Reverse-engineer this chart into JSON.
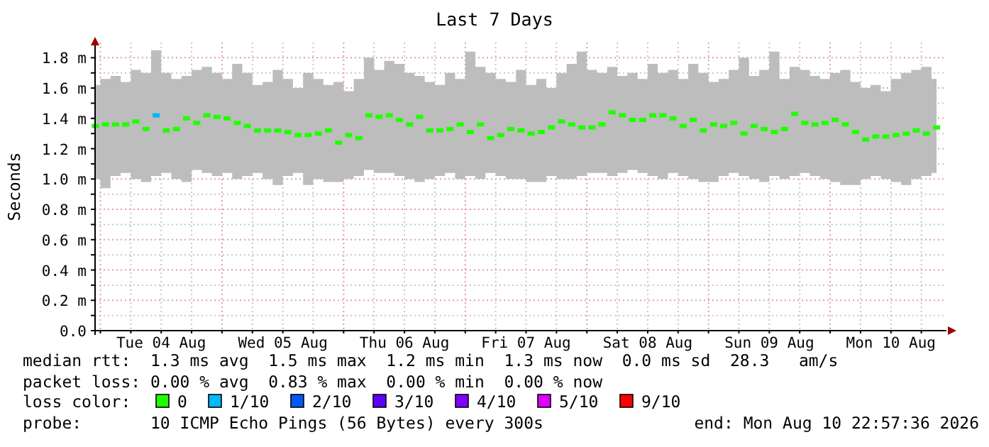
{
  "chart_data": {
    "type": "scatter",
    "title": "Last 7 Days",
    "ylabel": "Seconds",
    "legend_title": "loss color:",
    "legend": "bottom",
    "grid": true,
    "marker": "square",
    "xlim": [
      "2026-08-03T22:57",
      "2026-08-10T22:57"
    ],
    "xticks": [
      {
        "value": "2026-08-04T00:00",
        "label": null
      },
      {
        "value": "2026-08-04T06:00",
        "label": null
      },
      {
        "value": "2026-08-04T12:00",
        "label": "Tue 04 Aug"
      },
      {
        "value": "2026-08-04T18:00",
        "label": null
      },
      {
        "value": "2026-08-05T00:00",
        "label": null
      },
      {
        "value": "2026-08-05T06:00",
        "label": null
      },
      {
        "value": "2026-08-05T12:00",
        "label": "Wed 05 Aug"
      },
      {
        "value": "2026-08-05T18:00",
        "label": null
      },
      {
        "value": "2026-08-06T00:00",
        "label": null
      },
      {
        "value": "2026-08-06T06:00",
        "label": null
      },
      {
        "value": "2026-08-06T12:00",
        "label": "Thu 06 Aug"
      },
      {
        "value": "2026-08-06T18:00",
        "label": null
      },
      {
        "value": "2026-08-07T00:00",
        "label": null
      },
      {
        "value": "2026-08-07T06:00",
        "label": null
      },
      {
        "value": "2026-08-07T12:00",
        "label": "Fri 07 Aug"
      },
      {
        "value": "2026-08-07T18:00",
        "label": null
      },
      {
        "value": "2026-08-08T00:00",
        "label": null
      },
      {
        "value": "2026-08-08T06:00",
        "label": null
      },
      {
        "value": "2026-08-08T12:00",
        "label": "Sat 08 Aug"
      },
      {
        "value": "2026-08-08T18:00",
        "label": null
      },
      {
        "value": "2026-08-09T00:00",
        "label": null
      },
      {
        "value": "2026-08-09T06:00",
        "label": null
      },
      {
        "value": "2026-08-09T12:00",
        "label": "Sun 09 Aug"
      },
      {
        "value": "2026-08-09T18:00",
        "label": null
      },
      {
        "value": "2026-08-10T00:00",
        "label": null
      },
      {
        "value": "2026-08-10T06:00",
        "label": null
      },
      {
        "value": "2026-08-10T12:00",
        "label": "Mon 10 Aug"
      },
      {
        "value": "2026-08-10T18:00",
        "label": null
      }
    ],
    "ylim": [
      0,
      1.9
    ],
    "yticks": [
      {
        "value": 0,
        "label": "0.0"
      },
      {
        "value": 0.1,
        "label": null
      },
      {
        "value": 0.2,
        "label": "0.2 m"
      },
      {
        "value": 0.3,
        "label": null
      },
      {
        "value": 0.4,
        "label": "0.4 m"
      },
      {
        "value": 0.5,
        "label": null
      },
      {
        "value": 0.6,
        "label": "0.6 m"
      },
      {
        "value": 0.7,
        "label": null
      },
      {
        "value": 0.8,
        "label": "0.8 m"
      },
      {
        "value": 0.9,
        "label": null
      },
      {
        "value": 1.0,
        "label": "1.0 m"
      },
      {
        "value": 1.1,
        "label": null
      },
      {
        "value": 1.2,
        "label": "1.2 m"
      },
      {
        "value": 1.3,
        "label": null
      },
      {
        "value": 1.4,
        "label": "1.4 m"
      },
      {
        "value": 1.5,
        "label": null
      },
      {
        "value": 1.6,
        "label": "1.6 m"
      },
      {
        "value": 1.7,
        "label": null
      },
      {
        "value": 1.8,
        "label": "1.8 m"
      }
    ],
    "x": [
      "2026-08-03T23:00",
      "2026-08-04T01:00",
      "2026-08-04T03:00",
      "2026-08-04T05:00",
      "2026-08-04T07:00",
      "2026-08-04T09:00",
      "2026-08-04T11:00",
      "2026-08-04T13:00",
      "2026-08-04T15:00",
      "2026-08-04T17:00",
      "2026-08-04T19:00",
      "2026-08-04T21:00",
      "2026-08-04T23:00",
      "2026-08-05T01:00",
      "2026-08-05T03:00",
      "2026-08-05T05:00",
      "2026-08-05T07:00",
      "2026-08-05T09:00",
      "2026-08-05T11:00",
      "2026-08-05T13:00",
      "2026-08-05T15:00",
      "2026-08-05T17:00",
      "2026-08-05T19:00",
      "2026-08-05T21:00",
      "2026-08-05T23:00",
      "2026-08-06T01:00",
      "2026-08-06T03:00",
      "2026-08-06T05:00",
      "2026-08-06T07:00",
      "2026-08-06T09:00",
      "2026-08-06T11:00",
      "2026-08-06T13:00",
      "2026-08-06T15:00",
      "2026-08-06T17:00",
      "2026-08-06T19:00",
      "2026-08-06T21:00",
      "2026-08-06T23:00",
      "2026-08-07T01:00",
      "2026-08-07T03:00",
      "2026-08-07T05:00",
      "2026-08-07T07:00",
      "2026-08-07T09:00",
      "2026-08-07T11:00",
      "2026-08-07T13:00",
      "2026-08-07T15:00",
      "2026-08-07T17:00",
      "2026-08-07T19:00",
      "2026-08-07T21:00",
      "2026-08-07T23:00",
      "2026-08-08T01:00",
      "2026-08-08T03:00",
      "2026-08-08T05:00",
      "2026-08-08T07:00",
      "2026-08-08T09:00",
      "2026-08-08T11:00",
      "2026-08-08T13:00",
      "2026-08-08T15:00",
      "2026-08-08T17:00",
      "2026-08-08T19:00",
      "2026-08-08T21:00",
      "2026-08-08T23:00",
      "2026-08-09T01:00",
      "2026-08-09T03:00",
      "2026-08-09T05:00",
      "2026-08-09T07:00",
      "2026-08-09T09:00",
      "2026-08-09T11:00",
      "2026-08-09T13:00",
      "2026-08-09T15:00",
      "2026-08-09T17:00",
      "2026-08-09T19:00",
      "2026-08-09T21:00",
      "2026-08-09T23:00",
      "2026-08-10T01:00",
      "2026-08-10T03:00",
      "2026-08-10T05:00",
      "2026-08-10T07:00",
      "2026-08-10T09:00",
      "2026-08-10T11:00",
      "2026-08-10T13:00",
      "2026-08-10T15:00",
      "2026-08-10T17:00",
      "2026-08-10T19:00",
      "2026-08-10T21:00"
    ],
    "series": [
      {
        "name": "0",
        "color": "#20ff00",
        "values": [
          1.35,
          1.36,
          1.36,
          1.36,
          1.38,
          1.33,
          null,
          1.32,
          1.33,
          1.4,
          1.37,
          1.42,
          1.41,
          1.4,
          1.37,
          1.35,
          1.32,
          1.32,
          1.32,
          1.31,
          1.29,
          1.29,
          1.3,
          1.32,
          1.24,
          1.29,
          1.27,
          1.42,
          1.41,
          1.42,
          1.39,
          1.36,
          1.41,
          1.32,
          1.32,
          1.33,
          1.36,
          1.31,
          1.36,
          1.27,
          1.29,
          1.33,
          1.32,
          1.3,
          1.31,
          1.34,
          1.38,
          1.36,
          1.34,
          1.34,
          1.36,
          1.44,
          1.42,
          1.39,
          1.39,
          1.42,
          1.42,
          1.4,
          1.35,
          1.39,
          1.32,
          1.36,
          1.35,
          1.37,
          1.3,
          1.35,
          1.33,
          1.31,
          1.33,
          1.43,
          1.37,
          1.36,
          1.37,
          1.39,
          1.36,
          1.31,
          1.26,
          1.28,
          1.28,
          1.29,
          1.3,
          1.32,
          1.3,
          1.34
        ],
        "upper": [
          1.62,
          1.66,
          1.68,
          1.64,
          1.72,
          1.7,
          1.85,
          1.7,
          1.66,
          1.68,
          1.72,
          1.74,
          1.7,
          1.66,
          1.76,
          1.7,
          1.62,
          1.64,
          1.72,
          1.66,
          1.6,
          1.7,
          1.66,
          1.62,
          1.64,
          1.58,
          1.66,
          1.8,
          1.72,
          1.78,
          1.76,
          1.7,
          1.68,
          1.64,
          1.62,
          1.7,
          1.66,
          1.84,
          1.74,
          1.7,
          1.66,
          1.64,
          1.72,
          1.62,
          1.66,
          1.6,
          1.7,
          1.76,
          1.84,
          1.72,
          1.7,
          1.74,
          1.68,
          1.7,
          1.66,
          1.76,
          1.7,
          1.72,
          1.66,
          1.76,
          1.7,
          1.64,
          1.66,
          1.72,
          1.8,
          1.68,
          1.72,
          1.84,
          1.66,
          1.74,
          1.72,
          1.68,
          1.66,
          1.7,
          1.72,
          1.64,
          1.6,
          1.62,
          1.58,
          1.66,
          1.7,
          1.72,
          1.74,
          1.66
        ],
        "lower": [
          1.0,
          0.94,
          1.02,
          1.04,
          1.0,
          0.98,
          1.02,
          1.04,
          1.0,
          0.98,
          1.06,
          1.04,
          1.02,
          1.04,
          1.0,
          1.02,
          1.04,
          1.0,
          0.96,
          1.02,
          1.04,
          0.96,
          1.0,
          0.98,
          0.98,
          1.0,
          1.02,
          1.06,
          1.04,
          1.04,
          1.02,
          1.0,
          0.98,
          1.0,
          1.02,
          1.04,
          1.0,
          1.02,
          1.0,
          1.04,
          1.02,
          1.0,
          1.0,
          0.98,
          0.98,
          1.02,
          1.0,
          1.0,
          1.02,
          1.04,
          1.04,
          1.02,
          1.04,
          1.06,
          1.04,
          1.02,
          1.0,
          1.04,
          1.02,
          1.0,
          0.98,
          0.98,
          1.02,
          1.04,
          1.02,
          1.0,
          0.98,
          1.02,
          1.0,
          1.02,
          1.04,
          1.02,
          1.0,
          0.98,
          0.96,
          0.96,
          1.0,
          1.02,
          1.0,
          0.98,
          0.96,
          1.0,
          1.02,
          1.04
        ]
      },
      {
        "name": "1/10",
        "color": "#00b8ff",
        "x": [
          "2026-08-04T11:00"
        ],
        "values": [
          1.42
        ]
      },
      {
        "name": "2/10",
        "color": "#0059ff",
        "values": [
          null,
          null,
          null,
          null,
          null,
          null,
          null,
          null,
          null,
          null,
          null,
          null,
          null,
          null,
          null,
          null,
          null,
          null,
          null,
          null,
          null,
          null,
          null,
          null,
          null,
          null,
          null,
          null,
          null,
          null,
          null,
          null,
          null,
          null,
          null,
          null,
          null,
          null,
          null,
          null,
          null,
          null,
          null,
          null,
          null,
          null,
          null,
          null,
          null,
          null,
          null,
          null,
          null,
          null,
          null,
          null,
          null,
          null,
          null,
          null,
          null,
          null,
          null,
          null,
          null,
          null,
          null,
          null,
          null,
          null,
          null,
          null,
          null,
          null,
          null,
          null,
          null,
          null,
          null,
          null,
          null,
          null,
          null,
          null
        ]
      },
      {
        "name": "3/10",
        "color": "#5e00ff",
        "values": [
          null,
          null,
          null,
          null,
          null,
          null,
          null,
          null,
          null,
          null,
          null,
          null,
          null,
          null,
          null,
          null,
          null,
          null,
          null,
          null,
          null,
          null,
          null,
          null,
          null,
          null,
          null,
          null,
          null,
          null,
          null,
          null,
          null,
          null,
          null,
          null,
          null,
          null,
          null,
          null,
          null,
          null,
          null,
          null,
          null,
          null,
          null,
          null,
          null,
          null,
          null,
          null,
          null,
          null,
          null,
          null,
          null,
          null,
          null,
          null,
          null,
          null,
          null,
          null,
          null,
          null,
          null,
          null,
          null,
          null,
          null,
          null,
          null,
          null,
          null,
          null,
          null,
          null,
          null,
          null,
          null,
          null,
          null,
          null
        ]
      },
      {
        "name": "4/10",
        "color": "#7e00ff",
        "values": [
          null,
          null,
          null,
          null,
          null,
          null,
          null,
          null,
          null,
          null,
          null,
          null,
          null,
          null,
          null,
          null,
          null,
          null,
          null,
          null,
          null,
          null,
          null,
          null,
          null,
          null,
          null,
          null,
          null,
          null,
          null,
          null,
          null,
          null,
          null,
          null,
          null,
          null,
          null,
          null,
          null,
          null,
          null,
          null,
          null,
          null,
          null,
          null,
          null,
          null,
          null,
          null,
          null,
          null,
          null,
          null,
          null,
          null,
          null,
          null,
          null,
          null,
          null,
          null,
          null,
          null,
          null,
          null,
          null,
          null,
          null,
          null,
          null,
          null,
          null,
          null,
          null,
          null,
          null,
          null,
          null,
          null,
          null,
          null
        ]
      },
      {
        "name": "5/10",
        "color": "#dd00ff",
        "values": [
          null,
          null,
          null,
          null,
          null,
          null,
          null,
          null,
          null,
          null,
          null,
          null,
          null,
          null,
          null,
          null,
          null,
          null,
          null,
          null,
          null,
          null,
          null,
          null,
          null,
          null,
          null,
          null,
          null,
          null,
          null,
          null,
          null,
          null,
          null,
          null,
          null,
          null,
          null,
          null,
          null,
          null,
          null,
          null,
          null,
          null,
          null,
          null,
          null,
          null,
          null,
          null,
          null,
          null,
          null,
          null,
          null,
          null,
          null,
          null,
          null,
          null,
          null,
          null,
          null,
          null,
          null,
          null,
          null,
          null,
          null,
          null,
          null,
          null,
          null,
          null,
          null,
          null,
          null,
          null,
          null,
          null,
          null,
          null
        ]
      },
      {
        "name": "9/10",
        "color": "#ff0000",
        "values": [
          null,
          null,
          null,
          null,
          null,
          null,
          null,
          null,
          null,
          null,
          null,
          null,
          null,
          null,
          null,
          null,
          null,
          null,
          null,
          null,
          null,
          null,
          null,
          null,
          null,
          null,
          null,
          null,
          null,
          null,
          null,
          null,
          null,
          null,
          null,
          null,
          null,
          null,
          null,
          null,
          null,
          null,
          null,
          null,
          null,
          null,
          null,
          null,
          null,
          null,
          null,
          null,
          null,
          null,
          null,
          null,
          null,
          null,
          null,
          null,
          null,
          null,
          null,
          null,
          null,
          null,
          null,
          null,
          null,
          null,
          null,
          null,
          null,
          null,
          null,
          null,
          null,
          null,
          null,
          null,
          null,
          null,
          null,
          null
        ]
      }
    ],
    "annotations": [
      "median rtt:  1.3 ms avg  1.5 ms max  1.2 ms min  1.3 ms now  0.0 ms sd  28.3   am/s",
      "packet loss: 0.00 % avg  0.83 % max  0.00 % min  0.00 % now",
      "probe:       10 ICMP Echo Pings (56 Bytes) every 300s",
      "end: Mon Aug 10 22:57:36 2026"
    ]
  }
}
